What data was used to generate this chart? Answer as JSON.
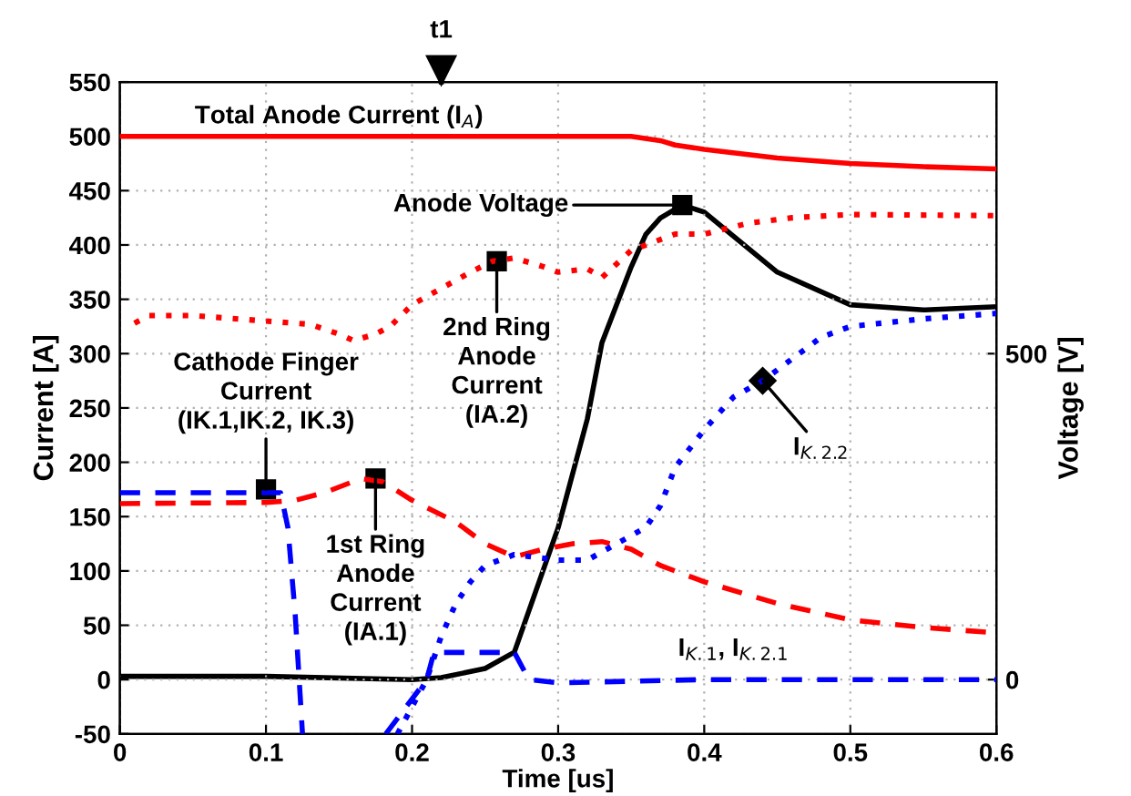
{
  "chart_data": {
    "type": "line",
    "xlabel": "Time [us]",
    "ylabel": "Current [A]",
    "y2label": "Voltage [V]",
    "xlim": [
      0,
      0.6
    ],
    "xticks": [
      0,
      0.1,
      0.2,
      0.3,
      0.4,
      0.5,
      0.6
    ],
    "ylim": [
      -50,
      550
    ],
    "yticks": [
      -50,
      0,
      50,
      100,
      150,
      200,
      250,
      300,
      350,
      400,
      450,
      500,
      550
    ],
    "y2lim": [
      -83.3,
      916.7
    ],
    "y2ticks": [
      0,
      500
    ],
    "grid": true,
    "marker": "none",
    "ref_lines": [
      {
        "axis": "x",
        "value": 0.22,
        "label": "t1"
      }
    ],
    "series": [
      {
        "color": "#ff0000",
        "line_style": "solid",
        "x": [
          0,
          0.1,
          0.2,
          0.3,
          0.35,
          0.37,
          0.38,
          0.4,
          0.45,
          0.5,
          0.55,
          0.6
        ],
        "values": [
          500,
          500,
          500,
          500,
          500,
          496,
          492,
          488,
          480,
          475,
          472,
          470
        ]
      },
      {
        "color": "#ff0000",
        "line_style": "dotted",
        "x": [
          0.01,
          0.02,
          0.05,
          0.1,
          0.13,
          0.15,
          0.16,
          0.175,
          0.185,
          0.2,
          0.22,
          0.24,
          0.255,
          0.27,
          0.29,
          0.3,
          0.32,
          0.33,
          0.35,
          0.38,
          0.4,
          0.43,
          0.46,
          0.5,
          0.6
        ],
        "values": [
          328,
          335,
          335,
          330,
          327,
          318,
          312,
          318,
          325,
          345,
          360,
          375,
          385,
          388,
          380,
          375,
          378,
          370,
          395,
          410,
          410,
          420,
          425,
          428,
          427
        ]
      },
      {
        "color": "#ff0000",
        "line_style": "dashed",
        "x": [
          0,
          0.1,
          0.12,
          0.14,
          0.165,
          0.18,
          0.2,
          0.23,
          0.25,
          0.27,
          0.29,
          0.31,
          0.33,
          0.35,
          0.37,
          0.4,
          0.45,
          0.5,
          0.55,
          0.6
        ],
        "values": [
          162,
          163,
          165,
          172,
          185,
          182,
          165,
          145,
          125,
          113,
          120,
          125,
          127,
          120,
          105,
          90,
          70,
          55,
          48,
          43
        ]
      },
      {
        "color": "#0000ff",
        "line_style": "dashed",
        "x": [
          0,
          0.11,
          0.115,
          0.12,
          0.125,
          0.15,
          0.182,
          0.21,
          0.215,
          0.27,
          0.28,
          0.3,
          0.4,
          0.5,
          0.6
        ],
        "values": [
          172,
          172,
          140,
          60,
          -50,
          null,
          -50,
          0,
          25,
          25,
          0,
          -3,
          0,
          0,
          0
        ]
      },
      {
        "color": "#0000ff",
        "line_style": "dotted",
        "x": [
          0.19,
          0.21,
          0.22,
          0.23,
          0.24,
          0.25,
          0.27,
          0.3,
          0.32,
          0.34,
          0.36,
          0.37,
          0.38,
          0.4,
          0.42,
          0.44,
          0.46,
          0.48,
          0.5,
          0.55,
          0.6
        ],
        "values": [
          -50,
          0,
          40,
          70,
          90,
          105,
          115,
          110,
          110,
          125,
          140,
          160,
          195,
          230,
          260,
          275,
          295,
          315,
          325,
          332,
          337
        ]
      },
      {
        "color": "#000000",
        "line_style": "solid",
        "axis": "y2",
        "x": [
          0,
          0.1,
          0.2,
          0.22,
          0.25,
          0.27,
          0.3,
          0.32,
          0.33,
          0.35,
          0.36,
          0.37,
          0.385,
          0.4,
          0.45,
          0.5,
          0.55,
          0.6
        ],
        "values": [
          5,
          5,
          0,
          3,
          17,
          42,
          233,
          400,
          517,
          633,
          683,
          708,
          728,
          717,
          625,
          575,
          567,
          572
        ]
      }
    ],
    "annotations": [
      {
        "text": "Total Anode Current (I$_{A}$)",
        "x": 0.15,
        "y": 500
      },
      "Anode Voltage",
      {
        "text": "2nd Ring\nAnode\nCurrent\n(IA.2)",
        "x": 0.258,
        "y": 385
      },
      {
        "text": "Cathode Finger\nCurrent\n(IK.1,IK.2, IK.3)",
        "x": 0.1,
        "y": 175
      },
      {
        "text": "1st Ring\nAnode\nCurrent\n(IA.1)",
        "x": 0.175,
        "y": 185
      },
      {
        "text": "I$_{K.2.2}$",
        "x": 0.44,
        "y": 275
      },
      {
        "text": "I$_{K.1}$, I$_{K.2.1}$",
        "x": 0.42,
        "y": 10
      }
    ]
  }
}
